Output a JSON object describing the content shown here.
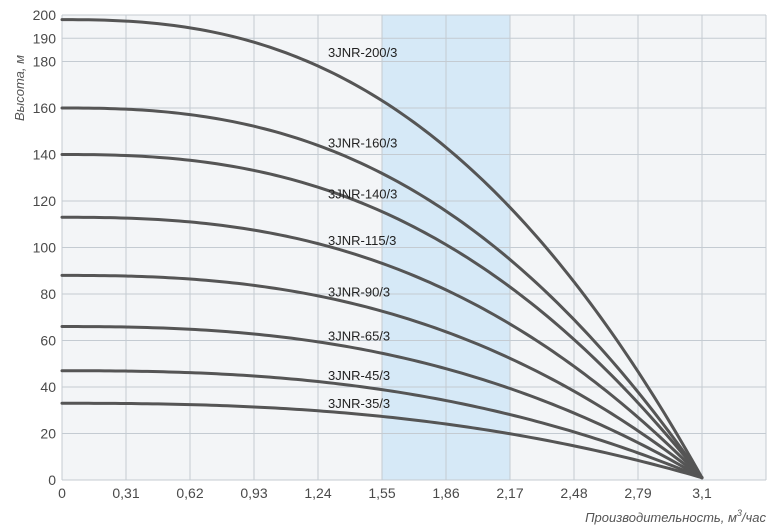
{
  "chart_data": {
    "type": "line",
    "xlabel": "Производительность, м³/час",
    "xlabel_parts": {
      "before": "Производительность, м",
      "sup": "3",
      "after": "/час"
    },
    "ylabel": "Высота, м",
    "xlim": [
      0,
      3.41
    ],
    "ylim": [
      0,
      200
    ],
    "x_ticks": [
      0,
      0.31,
      0.62,
      0.93,
      1.24,
      1.55,
      1.86,
      2.17,
      2.48,
      2.79,
      3.1
    ],
    "x_tick_labels": [
      "0",
      "0,31",
      "0,62",
      "0,93",
      "1,24",
      "1,55",
      "1,86",
      "2,17",
      "2,48",
      "2,79",
      "3,1"
    ],
    "y_ticks": [
      0,
      20,
      40,
      60,
      80,
      100,
      120,
      140,
      160,
      180,
      190,
      200
    ],
    "y_tick_labels": [
      "0",
      "20",
      "40",
      "60",
      "80",
      "100",
      "120",
      "140",
      "160",
      "180",
      "190",
      "200"
    ],
    "highlight_range": [
      1.55,
      2.17
    ],
    "highlight_color": "#d6e9f7",
    "curve_color": "#555555",
    "grid": true,
    "series": [
      {
        "name": "3JNR-200/3",
        "shutoff_head": 198,
        "label_at": [
          1.24,
          182
        ]
      },
      {
        "name": "3JNR-160/3",
        "shutoff_head": 160,
        "label_at": [
          1.24,
          143
        ]
      },
      {
        "name": "3JNR-140/3",
        "shutoff_head": 140,
        "label_at": [
          1.24,
          121
        ]
      },
      {
        "name": "3JNR-115/3",
        "shutoff_head": 113,
        "label_at": [
          1.24,
          101
        ]
      },
      {
        "name": "3JNR-90/3",
        "shutoff_head": 88,
        "label_at": [
          1.24,
          79
        ]
      },
      {
        "name": "3JNR-65/3",
        "shutoff_head": 66,
        "label_at": [
          1.24,
          60
        ]
      },
      {
        "name": "3JNR-45/3",
        "shutoff_head": 47,
        "label_at": [
          1.24,
          43
        ]
      },
      {
        "name": "3JNR-35/3",
        "shutoff_head": 33,
        "label_at": [
          1.24,
          31
        ]
      }
    ],
    "curve_end": [
      3.1,
      1
    ],
    "curve_shape_exponent": 2.5
  }
}
